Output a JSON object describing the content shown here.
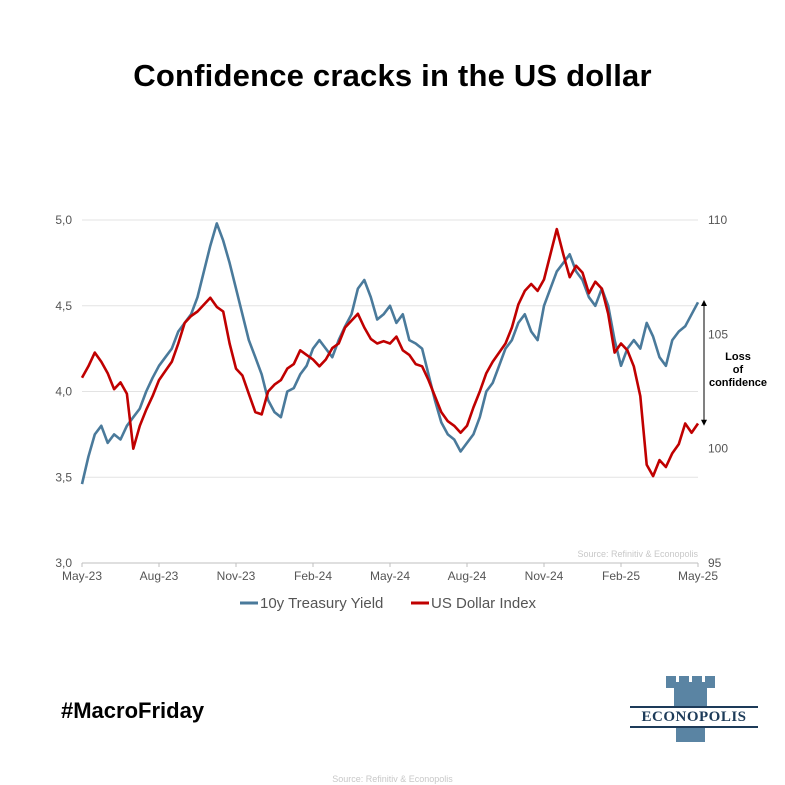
{
  "header": {
    "title": "Confidence cracks in the US dollar"
  },
  "footer": {
    "hashtag": "#MacroFriday",
    "source": "Source: Refinitiv & Econopolis"
  },
  "logo": {
    "text": "ECONOPOLIS",
    "color": "#5a84a3"
  },
  "chart_data": {
    "type": "line",
    "x_tick_labels": [
      "May-23",
      "Aug-23",
      "Nov-23",
      "Feb-24",
      "May-24",
      "Aug-24",
      "Nov-24",
      "Feb-25",
      "May-25"
    ],
    "y_left": {
      "min": 3.0,
      "max": 5.0,
      "ticks": [
        "3,0",
        "3,5",
        "4,0",
        "4,5",
        "5,0"
      ]
    },
    "y_right": {
      "min": 95,
      "max": 110,
      "ticks": [
        "95",
        "100",
        "105",
        "110"
      ]
    },
    "grid": true,
    "legend_position": "bottom",
    "annotation": {
      "lines": [
        "Loss",
        "of",
        "confidence"
      ],
      "from": 106.5,
      "to": 101.0
    },
    "source_note": "Source: Refinitiv & Econopolis",
    "series": [
      {
        "name": "10y Treasury Yield",
        "axis": "left",
        "color": "#4a7a9b",
        "t": [
          0,
          0.25,
          0.5,
          0.75,
          1.0,
          1.25,
          1.5,
          1.75,
          2.0,
          2.25,
          2.5,
          2.75,
          3.0,
          3.25,
          3.5,
          3.75,
          4.0,
          4.25,
          4.5,
          4.75,
          5.0,
          5.25,
          5.5,
          5.75,
          6.0,
          6.25,
          6.5,
          6.75,
          7.0,
          7.25,
          7.5,
          7.75,
          8.0,
          8.25,
          8.5,
          8.75,
          9.0,
          9.25,
          9.5,
          9.75,
          10.0,
          10.25,
          10.5,
          10.75,
          11.0,
          11.25,
          11.5,
          11.75,
          12.0,
          12.25,
          12.5,
          12.75,
          13.0,
          13.25,
          13.5,
          13.75,
          14.0,
          14.25,
          14.5,
          14.75,
          15.0,
          15.25,
          15.5,
          15.75,
          16.0,
          16.25,
          16.5,
          16.75,
          17.0,
          17.25,
          17.5,
          17.75,
          18.0,
          18.25,
          18.5,
          18.75,
          19.0,
          19.25,
          19.5,
          19.75,
          20.0,
          20.25,
          20.5,
          20.75,
          21.0,
          21.25,
          21.5,
          21.75,
          22.0,
          22.25,
          22.5,
          22.75,
          23.0,
          23.25,
          23.5,
          23.75,
          24.0
        ],
        "values": [
          3.46,
          3.62,
          3.75,
          3.8,
          3.7,
          3.75,
          3.72,
          3.8,
          3.85,
          3.9,
          4.0,
          4.08,
          4.15,
          4.2,
          4.25,
          4.35,
          4.4,
          4.45,
          4.55,
          4.7,
          4.85,
          4.98,
          4.88,
          4.75,
          4.6,
          4.45,
          4.3,
          4.2,
          4.1,
          3.95,
          3.88,
          3.85,
          4.0,
          4.02,
          4.1,
          4.15,
          4.25,
          4.3,
          4.25,
          4.2,
          4.3,
          4.38,
          4.45,
          4.6,
          4.65,
          4.55,
          4.42,
          4.45,
          4.5,
          4.4,
          4.45,
          4.3,
          4.28,
          4.25,
          4.1,
          3.95,
          3.82,
          3.75,
          3.72,
          3.65,
          3.7,
          3.75,
          3.85,
          4.0,
          4.05,
          4.15,
          4.25,
          4.3,
          4.4,
          4.45,
          4.35,
          4.3,
          4.5,
          4.6,
          4.7,
          4.75,
          4.8,
          4.7,
          4.65,
          4.55,
          4.5,
          4.6,
          4.5,
          4.3,
          4.15,
          4.25,
          4.3,
          4.25,
          4.4,
          4.32,
          4.2,
          4.15,
          4.3,
          4.35,
          4.38,
          4.45,
          4.52
        ]
      },
      {
        "name": "US Dollar Index",
        "axis": "right",
        "color": "#c00000",
        "t": [
          0,
          0.25,
          0.5,
          0.75,
          1.0,
          1.25,
          1.5,
          1.75,
          2.0,
          2.25,
          2.5,
          2.75,
          3.0,
          3.25,
          3.5,
          3.75,
          4.0,
          4.25,
          4.5,
          4.75,
          5.0,
          5.25,
          5.5,
          5.75,
          6.0,
          6.25,
          6.5,
          6.75,
          7.0,
          7.25,
          7.5,
          7.75,
          8.0,
          8.25,
          8.5,
          8.75,
          9.0,
          9.25,
          9.5,
          9.75,
          10.0,
          10.25,
          10.5,
          10.75,
          11.0,
          11.25,
          11.5,
          11.75,
          12.0,
          12.25,
          12.5,
          12.75,
          13.0,
          13.25,
          13.5,
          13.75,
          14.0,
          14.25,
          14.5,
          14.75,
          15.0,
          15.25,
          15.5,
          15.75,
          16.0,
          16.25,
          16.5,
          16.75,
          17.0,
          17.25,
          17.5,
          17.75,
          18.0,
          18.25,
          18.5,
          18.75,
          19.0,
          19.25,
          19.5,
          19.75,
          20.0,
          20.25,
          20.5,
          20.75,
          21.0,
          21.25,
          21.5,
          21.75,
          22.0,
          22.25,
          22.5,
          22.75,
          23.0,
          23.25,
          23.5,
          23.75,
          24.0
        ],
        "values": [
          103.1,
          103.6,
          104.2,
          103.8,
          103.3,
          102.6,
          102.9,
          102.4,
          100.0,
          101.0,
          101.7,
          102.3,
          103.0,
          103.4,
          103.8,
          104.6,
          105.5,
          105.8,
          106.0,
          106.3,
          106.6,
          106.2,
          106.0,
          104.6,
          103.5,
          103.2,
          102.4,
          101.6,
          101.5,
          102.5,
          102.8,
          103.0,
          103.5,
          103.7,
          104.3,
          104.1,
          103.9,
          103.6,
          103.9,
          104.4,
          104.6,
          105.3,
          105.6,
          105.9,
          105.3,
          104.8,
          104.6,
          104.7,
          104.6,
          104.9,
          104.3,
          104.1,
          103.7,
          103.6,
          103.0,
          102.3,
          101.6,
          101.2,
          101.0,
          100.7,
          101.0,
          101.8,
          102.5,
          103.3,
          103.8,
          104.2,
          104.6,
          105.3,
          106.3,
          106.9,
          107.2,
          106.9,
          107.4,
          108.5,
          109.6,
          108.5,
          107.5,
          108.0,
          107.7,
          106.8,
          107.3,
          107.0,
          105.9,
          104.2,
          104.6,
          104.3,
          103.6,
          102.3,
          99.3,
          98.8,
          99.5,
          99.2,
          99.8,
          100.2,
          101.1,
          100.7,
          101.1
        ]
      }
    ]
  }
}
